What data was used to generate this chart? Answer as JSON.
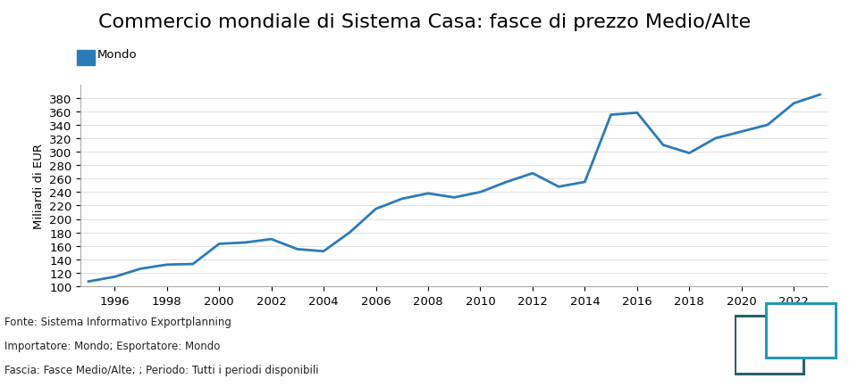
{
  "title": "Commercio mondiale di Sistema Casa: fasce di prezzo Medio/Alte",
  "ylabel": "Miliardi di EUR",
  "legend_label": "Mondo",
  "line_color": "#2b7bb9",
  "background_color": "#ffffff",
  "years": [
    1995,
    1996,
    1997,
    1998,
    1999,
    2000,
    2001,
    2002,
    2003,
    2004,
    2005,
    2006,
    2007,
    2008,
    2009,
    2010,
    2011,
    2012,
    2013,
    2014,
    2015,
    2016,
    2017,
    2018,
    2019,
    2020,
    2021,
    2022,
    2023
  ],
  "values": [
    107,
    114,
    126,
    132,
    133,
    163,
    165,
    170,
    155,
    152,
    180,
    215,
    230,
    238,
    232,
    240,
    255,
    268,
    248,
    255,
    355,
    358,
    310,
    298,
    320,
    330,
    340,
    372,
    385
  ],
  "ylim": [
    100,
    400
  ],
  "yticks": [
    100,
    120,
    140,
    160,
    180,
    200,
    220,
    240,
    260,
    280,
    300,
    320,
    340,
    360,
    380
  ],
  "xticks": [
    1996,
    1998,
    2000,
    2002,
    2004,
    2006,
    2008,
    2010,
    2012,
    2014,
    2016,
    2018,
    2020,
    2022
  ],
  "footnote_lines": [
    "Fonte: Sistema Informativo Exportplanning",
    "Importatore: Mondo; Esportatore: Mondo",
    "Fascia: Fasce Medio/Alte; ; Periodo: Tutti i periodi disponibili"
  ],
  "title_fontsize": 16,
  "axis_fontsize": 9.5,
  "footnote_fontsize": 8.5,
  "legend_fontsize": 9.5,
  "line_width": 2.0,
  "legend_color": "#2b7bb9",
  "logo_color_back": "#2b6070",
  "logo_color_front": "#2298b8"
}
